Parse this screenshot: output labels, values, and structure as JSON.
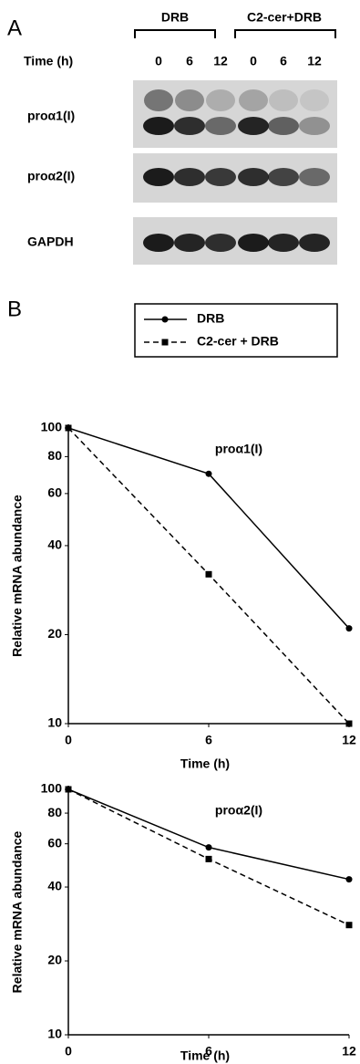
{
  "panel_a": {
    "label": "A",
    "groups": [
      "DRB",
      "C2-cer+DRB"
    ],
    "time_label": "Time (h)",
    "lanes": [
      "0",
      "6",
      "12",
      "0",
      "6",
      "12"
    ],
    "rows": [
      "proα1(I)",
      "proα2(I)",
      "GAPDH"
    ]
  },
  "panel_b_label": "B",
  "chart_data": [
    {
      "type": "line",
      "title": "proα1(I)",
      "x_label": "Time (h)",
      "y_label": "Relative mRNA abundance",
      "x": [
        0,
        6,
        12
      ],
      "xlim": [
        0,
        12
      ],
      "xticks": [
        0,
        6,
        12
      ],
      "ylim": [
        10,
        100
      ],
      "yticks": [
        10,
        20,
        40,
        60,
        80,
        100
      ],
      "log_y": true,
      "series": [
        {
          "name": "DRB",
          "color": "#000000",
          "marker": "circle",
          "dash": "solid",
          "values": [
            100,
            70,
            21
          ]
        },
        {
          "name": "C2-cer + DRB",
          "color": "#000000",
          "marker": "square",
          "dash": "dashed",
          "values": [
            100,
            32,
            10
          ]
        }
      ]
    },
    {
      "type": "line",
      "title": "proα2(I)",
      "x_label": "Time (h)",
      "y_label": "Relative mRNA abundance",
      "x": [
        0,
        6,
        12
      ],
      "xlim": [
        0,
        12
      ],
      "xticks": [
        0,
        6,
        12
      ],
      "ylim": [
        10,
        100
      ],
      "yticks": [
        10,
        20,
        40,
        60,
        80,
        100
      ],
      "log_y": true,
      "series": [
        {
          "color": "#000000",
          "marker": "circle",
          "dash": "solid",
          "values": [
            100,
            58,
            43
          ]
        },
        {
          "color": "#000000",
          "marker": "square",
          "dash": "dashed",
          "values": [
            100,
            52,
            28
          ]
        }
      ]
    }
  ]
}
